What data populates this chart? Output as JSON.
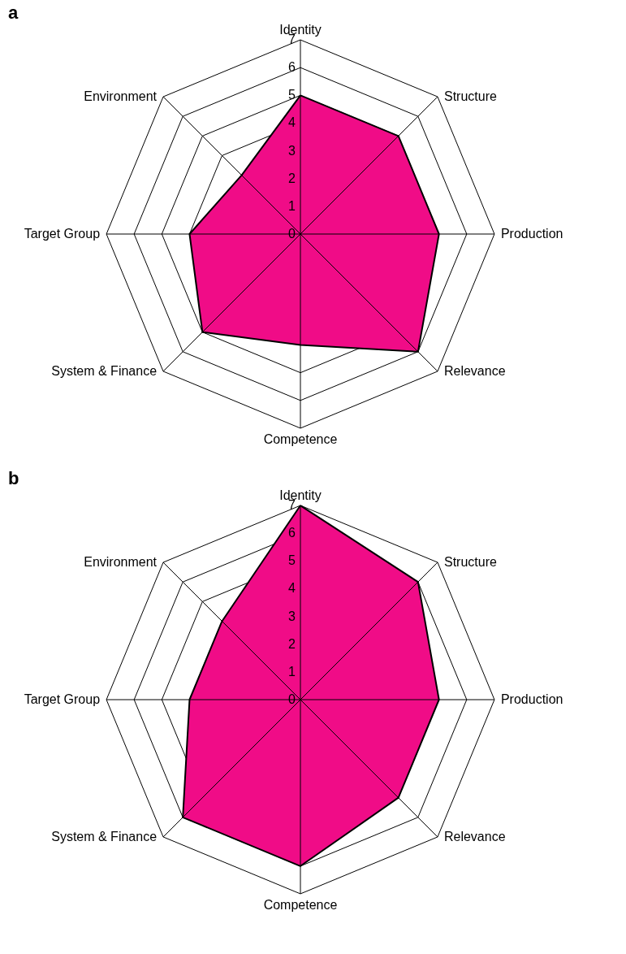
{
  "chart_data": [
    {
      "type": "radar",
      "title": "a",
      "categories": [
        "Identity",
        "Structure",
        "Production",
        "Relevance",
        "Competence",
        "System & Finance",
        "Target Group",
        "Environment"
      ],
      "series": [
        {
          "color": "#f00c87",
          "values": [
            5,
            5,
            5,
            6,
            4,
            5,
            4,
            3
          ]
        }
      ],
      "ylim": [
        0,
        7
      ],
      "yticks": [
        0,
        1,
        2,
        3,
        4,
        5,
        6,
        7
      ],
      "grid": true
    },
    {
      "type": "radar",
      "title": "b",
      "categories": [
        "Identity",
        "Structure",
        "Production",
        "Relevance",
        "Competence",
        "System & Finance",
        "Target Group",
        "Environment"
      ],
      "series": [
        {
          "color": "#f00c87",
          "values": [
            7,
            6,
            5,
            5,
            6,
            6,
            4,
            4
          ]
        }
      ],
      "ylim": [
        0,
        7
      ],
      "yticks": [
        0,
        1,
        2,
        3,
        4,
        5,
        6,
        7
      ],
      "grid": true
    }
  ]
}
